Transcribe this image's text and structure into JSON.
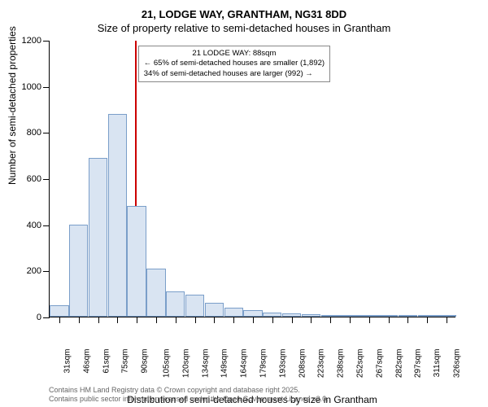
{
  "title_main": "21, LODGE WAY, GRANTHAM, NG31 8DD",
  "title_sub": "Size of property relative to semi-detached houses in Grantham",
  "y_axis_label": "Number of semi-detached properties",
  "x_axis_label": "Distribution of semi-detached houses by size in Grantham",
  "ylim": [
    0,
    1200
  ],
  "ytick_step": 200,
  "y_ticks": [
    0,
    200,
    400,
    600,
    800,
    1000,
    1200
  ],
  "categories": [
    "31sqm",
    "46sqm",
    "61sqm",
    "75sqm",
    "90sqm",
    "105sqm",
    "120sqm",
    "134sqm",
    "149sqm",
    "164sqm",
    "179sqm",
    "193sqm",
    "208sqm",
    "223sqm",
    "238sqm",
    "252sqm",
    "267sqm",
    "282sqm",
    "297sqm",
    "311sqm",
    "326sqm"
  ],
  "values": [
    50,
    400,
    690,
    880,
    480,
    210,
    110,
    95,
    60,
    40,
    30,
    18,
    15,
    12,
    8,
    8,
    5,
    3,
    3,
    2,
    2
  ],
  "bar_fill": "#d9e4f2",
  "bar_stroke": "#7a9ec9",
  "ref_line_color": "#cc0000",
  "ref_line_position": 88,
  "ref_line_index": 3.9,
  "annotation": {
    "line1": "21 LODGE WAY: 88sqm",
    "line2": "← 65% of semi-detached houses are smaller (1,892)",
    "line3": "34% of semi-detached houses are larger (992) →"
  },
  "footer_line1": "Contains HM Land Registry data © Crown copyright and database right 2025.",
  "footer_line2": "Contains public sector information licensed under the Open Government Licence v3.0.",
  "background_color": "#ffffff",
  "title_fontsize": 13,
  "axis_label_fontsize": 12,
  "tick_fontsize": 11
}
